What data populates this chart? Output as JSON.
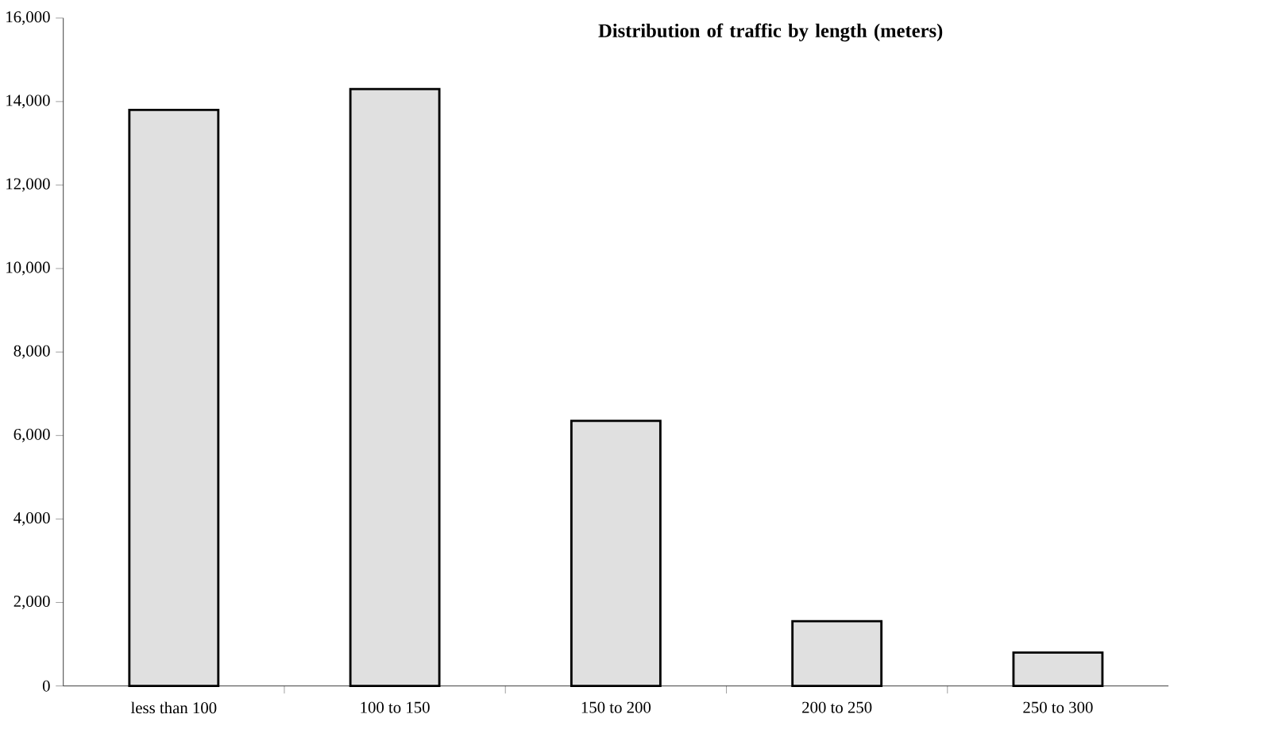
{
  "chart_data": {
    "type": "bar",
    "title": "Distribution of traffic by length (meters)",
    "categories": [
      "less than 100",
      "100 to 150",
      "150 to 200",
      "200 to 250",
      "250 to 300"
    ],
    "values": [
      13800,
      14300,
      6350,
      1550,
      800
    ],
    "color": "#e0e0e0",
    "ylim": [
      0,
      16000
    ],
    "yticks": [
      {
        "value": 0,
        "label": "0"
      },
      {
        "value": 2000,
        "label": "2,000"
      },
      {
        "value": 4000,
        "label": "4,000"
      },
      {
        "value": 6000,
        "label": "6,000"
      },
      {
        "value": 8000,
        "label": "8,000"
      },
      {
        "value": 10000,
        "label": "10,000"
      },
      {
        "value": 12000,
        "label": "12,000"
      },
      {
        "value": 14000,
        "label": "14,000"
      },
      {
        "value": 16000,
        "label": "16,000"
      }
    ]
  }
}
